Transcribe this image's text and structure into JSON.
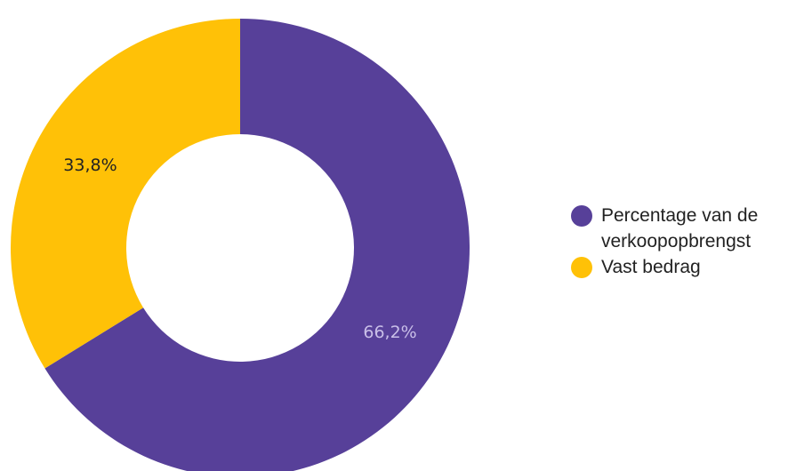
{
  "chart_data": {
    "type": "pie",
    "variant": "donut",
    "categories": [
      "Percentage van de verkoopopbrengst",
      "Vast bedrag"
    ],
    "values": [
      66.2,
      33.8
    ],
    "data_labels": [
      "66,2%",
      "33,8%"
    ],
    "colors": [
      "#574099",
      "#FFC107"
    ],
    "legend": {
      "position": "right",
      "entries": [
        "Percentage van de verkoopopbrengst",
        "Vast bedrag"
      ]
    }
  }
}
